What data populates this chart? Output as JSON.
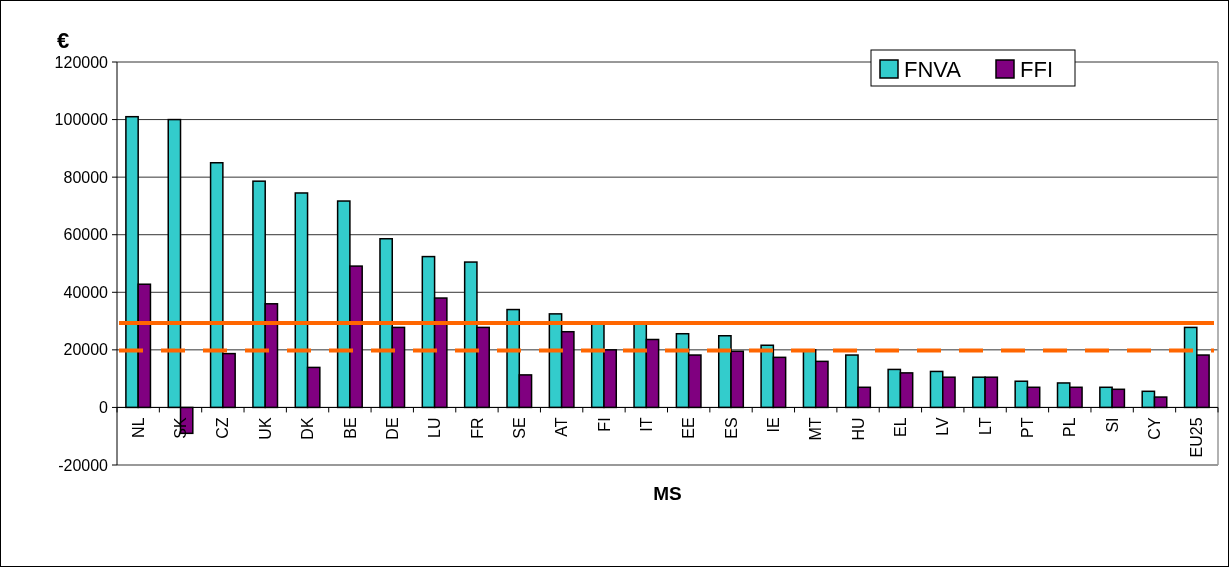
{
  "chart_data": {
    "type": "bar",
    "ylabel": "€",
    "xlabel": "MS",
    "categories": [
      "NL",
      "SK",
      "CZ",
      "UK",
      "DK",
      "BE",
      "DE",
      "LU",
      "FR",
      "SE",
      "AT",
      "FI",
      "IT",
      "EE",
      "ES",
      "IE",
      "MT",
      "HU",
      "EL",
      "LV",
      "LT",
      "PT",
      "PL",
      "SI",
      "CY",
      "EU25"
    ],
    "series": [
      {
        "name": "FNVA",
        "color": "#33cccc",
        "values": [
          101000,
          100000,
          85000,
          78600,
          74500,
          71700,
          58600,
          52400,
          50500,
          34000,
          32500,
          29000,
          29000,
          25600,
          24900,
          21600,
          20000,
          18200,
          13200,
          12500,
          10500,
          9100,
          8500,
          7000,
          5600,
          27800
        ]
      },
      {
        "name": "FFI",
        "color": "#800080",
        "values": [
          42800,
          -9000,
          18700,
          36000,
          13900,
          49100,
          27800,
          38000,
          27800,
          11300,
          26300,
          20000,
          23600,
          18200,
          19500,
          17400,
          16000,
          7000,
          12000,
          10500,
          10500,
          7000,
          7000,
          6300,
          3600,
          18200
        ]
      }
    ],
    "ylim": [
      -20000,
      120000
    ],
    "yticks": [
      -20000,
      0,
      20000,
      40000,
      60000,
      80000,
      100000,
      120000
    ],
    "grid": "y",
    "legend": "top right",
    "ref_lines": [
      {
        "axis": "y",
        "value": 29300,
        "color": "#ff6600",
        "line_style": "solid"
      },
      {
        "axis": "y",
        "value": 19800,
        "color": "#ff6600",
        "line_style": "dashed"
      }
    ]
  }
}
